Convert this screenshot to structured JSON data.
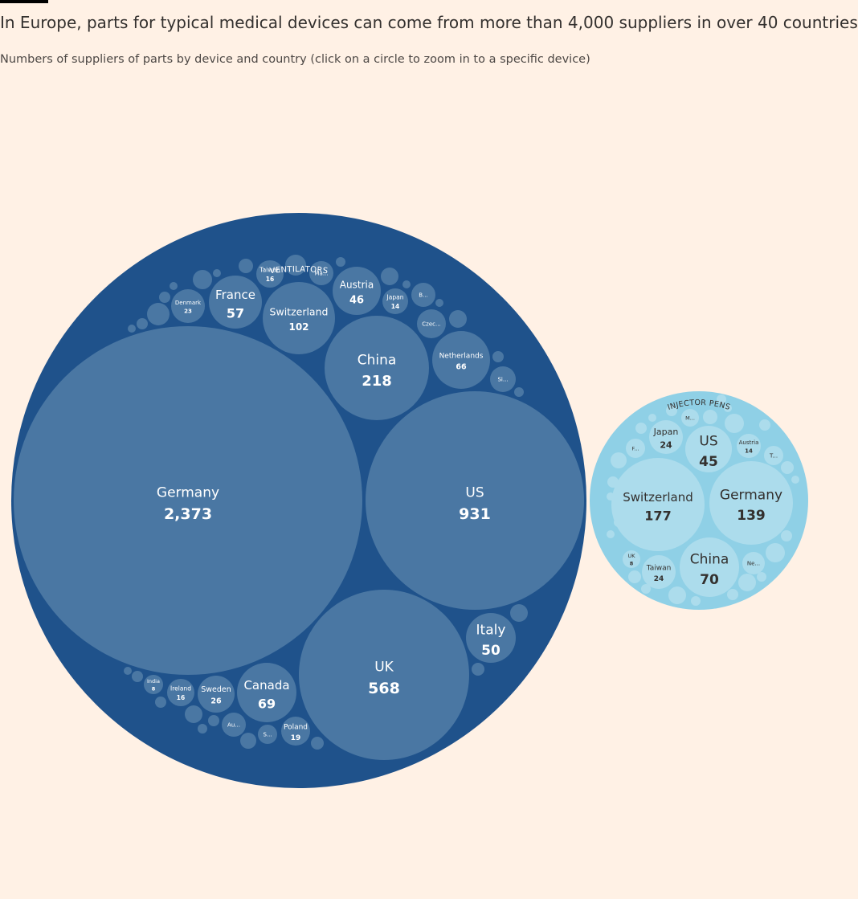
{
  "header": {
    "title": "In Europe, parts for typical medical devices can come from more than 4,000 suppliers in over 40 countries",
    "subtitle": "Numbers of suppliers of parts by device and country (click on a circle to zoom in to a specific device)"
  },
  "colors": {
    "background": "#fff1e5",
    "ventilators_outer": "#1f528b",
    "ventilators_inner": "#4a77a3",
    "injector_outer": "#8fd0e6",
    "injector_inner": "#acdcec",
    "label_light": "#ffffff",
    "label_dark": "#33302e"
  },
  "chart_data": {
    "type": "circle-packing",
    "devices": [
      {
        "name": "VENTILATORS",
        "countries": [
          {
            "label": "Germany",
            "value": "2,373"
          },
          {
            "label": "US",
            "value": "931"
          },
          {
            "label": "UK",
            "value": "568"
          },
          {
            "label": "China",
            "value": "218"
          },
          {
            "label": "Switzerland",
            "value": "102"
          },
          {
            "label": "Canada",
            "value": "69"
          },
          {
            "label": "Netherlands",
            "value": "66"
          },
          {
            "label": "France",
            "value": "57"
          },
          {
            "label": "Italy",
            "value": "50"
          },
          {
            "label": "Austria",
            "value": "46"
          },
          {
            "label": "Sweden",
            "value": "26"
          },
          {
            "label": "Denmark",
            "value": "23"
          },
          {
            "label": "Poland",
            "value": "19"
          },
          {
            "label": "Taiwan",
            "value": "16"
          },
          {
            "label": "Ireland",
            "value": "16"
          },
          {
            "label": "Japan",
            "value": "14"
          },
          {
            "label": "India",
            "value": "8"
          },
          {
            "label": "Ma...",
            "value": ""
          },
          {
            "label": "B...",
            "value": ""
          },
          {
            "label": "Czec...",
            "value": ""
          },
          {
            "label": "Si...",
            "value": ""
          },
          {
            "label": "Au...",
            "value": ""
          },
          {
            "label": "S...",
            "value": ""
          }
        ]
      },
      {
        "name": "INJECTOR PENS",
        "countries": [
          {
            "label": "Switzerland",
            "value": "177"
          },
          {
            "label": "Germany",
            "value": "139"
          },
          {
            "label": "China",
            "value": "70"
          },
          {
            "label": "US",
            "value": "45"
          },
          {
            "label": "Japan",
            "value": "24"
          },
          {
            "label": "Taiwan",
            "value": "24"
          },
          {
            "label": "Austria",
            "value": "14"
          },
          {
            "label": "UK",
            "value": "8"
          },
          {
            "label": "M...",
            "value": ""
          },
          {
            "label": "F...",
            "value": ""
          },
          {
            "label": "T...",
            "value": ""
          },
          {
            "label": "Ne...",
            "value": ""
          }
        ]
      }
    ]
  }
}
